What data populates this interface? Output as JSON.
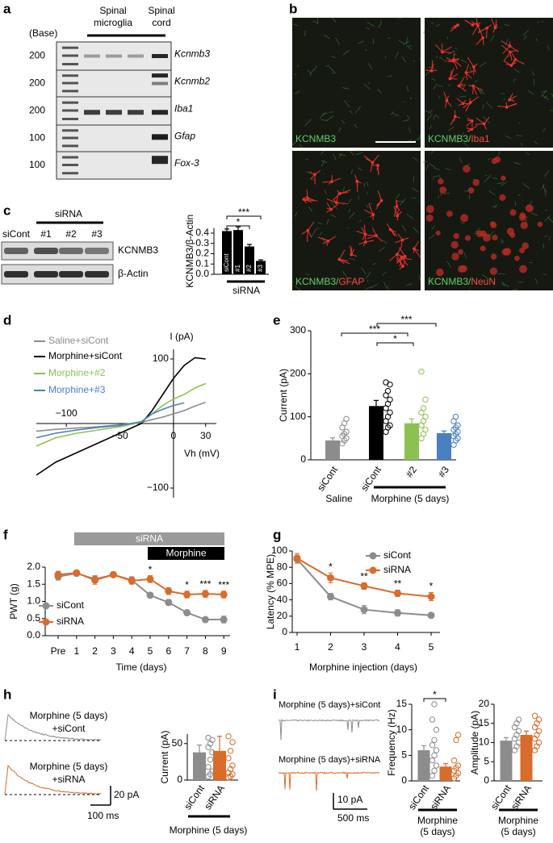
{
  "panel_labels": [
    "a",
    "b",
    "c",
    "d",
    "e",
    "f",
    "g",
    "h",
    "i"
  ],
  "gel": {
    "base_label": "(Base)",
    "lane_groups": [
      {
        "lines": [
          "Spinal",
          "microglia"
        ]
      },
      {
        "lines": [
          "Spinal",
          "cord"
        ]
      }
    ],
    "rows": [
      {
        "marker": 200,
        "gene": "Kcnmb3"
      },
      {
        "marker": 200,
        "gene": "Kcnmb2"
      },
      {
        "marker": 200,
        "gene": "Iba1"
      },
      {
        "marker": 100,
        "gene": "Gfap"
      },
      {
        "marker": 100,
        "gene": "Fox-3"
      }
    ]
  },
  "images": {
    "quadrants": [
      {
        "parts": [
          "KCNMB3"
        ]
      },
      {
        "parts": [
          "KCNMB3/",
          "Iba1"
        ]
      },
      {
        "parts": [
          "KCNMB3/",
          "GFAP"
        ]
      },
      {
        "parts": [
          "KCNMB3/",
          "NeuN"
        ]
      }
    ]
  },
  "blot": {
    "group": "siRNA",
    "lanes": [
      "siCont",
      "#1",
      "#2",
      "#3"
    ],
    "proteins": [
      "KCNMB3",
      "β-Actin"
    ]
  },
  "traces": {
    "h": {
      "labels": [
        [
          "Morphine (5 days)",
          "+siCont"
        ],
        [
          "Morphine (5 days)",
          "+siRNA"
        ]
      ],
      "scale": [
        "20 pA",
        "100 ms"
      ]
    },
    "i": {
      "labels": [
        "Morphine (5 days)+siCont",
        "Morphine (5 days)+siRNA"
      ],
      "scale": [
        "10 pA",
        "500 ms"
      ]
    }
  },
  "chart_data": [
    {
      "type": "bar",
      "ylabel": "KCNMB3/β-Actin",
      "categories": [
        "siCont",
        "#1",
        "#2",
        "#3"
      ],
      "values": [
        0.42,
        0.43,
        0.27,
        0.13
      ],
      "errors": [
        0.02,
        0.03,
        0.02,
        0.01
      ],
      "color": "#000000",
      "ylim": [
        0,
        0.45
      ],
      "yticks": [
        {
          "value": 0,
          "label": "0.0"
        },
        0.1,
        0.2,
        0.3,
        0.4
      ],
      "group_labels": [
        [
          "siRNA"
        ]
      ],
      "significance": [
        "***",
        "*"
      ]
    },
    {
      "type": "line",
      "ylabel": "I (pA)",
      "xlabel": "Vh (mV)",
      "x": [
        -128,
        -110,
        -90,
        -70,
        -50,
        -30,
        -20,
        -10,
        0,
        10,
        20,
        30
      ],
      "series": [
        {
          "name": "Saline+siCont",
          "color": "#8c8c8c",
          "values": [
            -12,
            -9,
            -7,
            -5,
            -2,
            2,
            6,
            10,
            15,
            20,
            27,
            33
          ]
        },
        {
          "name": "Morphine+siCont",
          "color": "#000000",
          "values": [
            -80,
            -60,
            -45,
            -30,
            -15,
            0,
            20,
            45,
            70,
            90,
            102,
            100
          ]
        },
        {
          "name": "Morphine+#2",
          "color": "#8cc152",
          "values": [
            -35,
            -22,
            -15,
            -10,
            -5,
            2,
            15,
            28,
            38,
            45,
            55,
            62
          ]
        },
        {
          "name": "Morphine+#3",
          "color": "#4a7fc1",
          "values": [
            -22,
            -15,
            -10,
            -6,
            -3,
            3,
            15,
            22,
            28,
            32,
            null,
            null
          ]
        }
      ],
      "xlim": [
        -128,
        40
      ],
      "ylim": [
        -115,
        115
      ],
      "xticks": [
        {
          "value": -100,
          "label": "−100"
        },
        {
          "value": -50,
          "label": "−50"
        },
        0,
        30
      ],
      "yticks": [
        {
          "value": -100,
          "label": "−100"
        },
        100
      ]
    },
    {
      "type": "bar",
      "ylabel": "Current (pA)",
      "categories": [
        "siCont",
        "siCont",
        "#2",
        "#3"
      ],
      "values": [
        45,
        125,
        85,
        62
      ],
      "errors": [
        6,
        13,
        10,
        5
      ],
      "colors": [
        "#8c8c8c",
        "#000000",
        "#8cc152",
        "#4a7fc1"
      ],
      "points": [
        [
          38,
          45,
          50,
          55,
          60,
          65,
          75,
          85,
          95
        ],
        [
          65,
          75,
          80,
          90,
          100,
          110,
          120,
          130,
          140,
          150,
          160,
          175,
          180
        ],
        [
          50,
          60,
          70,
          80,
          90,
          100,
          110,
          120,
          140,
          205
        ],
        [
          35,
          45,
          50,
          55,
          60,
          65,
          70,
          75,
          80,
          90,
          100
        ]
      ],
      "ylim": [
        0,
        300
      ],
      "yticks": [
        0,
        100,
        200,
        300
      ],
      "group_labels": [
        [
          "Saline"
        ],
        [
          "Morphine (5 days)"
        ]
      ],
      "significance": [
        "***",
        "*",
        "***"
      ]
    },
    {
      "type": "line",
      "ylabel": "PWT (g)",
      "xlabel": "Time (days)",
      "categories": [
        "Pre",
        "1",
        "2",
        "3",
        "4",
        "5",
        "6",
        "7",
        "8",
        "9"
      ],
      "series": [
        {
          "name": "siCont",
          "color": "#8c8c8c",
          "values": [
            1.72,
            1.82,
            1.65,
            1.78,
            1.62,
            1.18,
            0.97,
            0.67,
            0.47,
            0.47
          ],
          "errors": [
            0.1,
            0.08,
            0.1,
            0.06,
            0.1,
            0.06,
            0.08,
            0.06,
            0.06,
            0.1
          ]
        },
        {
          "name": "siRNA",
          "color": "#d96b2b",
          "values": [
            1.78,
            1.83,
            1.62,
            1.78,
            1.6,
            1.65,
            1.3,
            1.2,
            1.22,
            1.2
          ],
          "errors": [
            0.1,
            0.08,
            0.12,
            0.06,
            0.1,
            0.1,
            0.1,
            0.1,
            0.1,
            0.1
          ]
        }
      ],
      "ylim": [
        0,
        2.0
      ],
      "yticks": [
        {
          "value": 0,
          "label": "0.0"
        },
        0.5,
        {
          "value": 1,
          "label": "1.0"
        },
        1.5,
        {
          "value": 2,
          "label": "2.0"
        }
      ],
      "treatment_bars": [
        {
          "label": "siRNA",
          "color": "#9a9a9a"
        },
        {
          "label": "Morphine",
          "color": "#000000"
        }
      ],
      "significance": [
        null,
        null,
        null,
        null,
        null,
        "*",
        null,
        "*",
        "***",
        "***"
      ],
      "legend": "lower-left"
    },
    {
      "type": "line",
      "ylabel": "Latency (% MPE)",
      "xlabel": "Morphine injection (days)",
      "categories": [
        "1",
        "2",
        "3",
        "4",
        "5"
      ],
      "series": [
        {
          "name": "siCont",
          "color": "#8c8c8c",
          "values": [
            90,
            44,
            28,
            24,
            21
          ],
          "errors": [
            5,
            4,
            5,
            4,
            2
          ]
        },
        {
          "name": "siRNA",
          "color": "#d96b2b",
          "values": [
            91,
            67,
            57,
            48,
            44
          ],
          "errors": [
            6,
            6,
            4,
            4,
            5
          ]
        }
      ],
      "ylim": [
        0,
        100
      ],
      "yticks": [
        0,
        20,
        40,
        60,
        80,
        100
      ],
      "significance": [
        null,
        "*",
        "**",
        "**",
        "*"
      ],
      "legend": "upper-right"
    },
    {
      "type": "bar",
      "ylabel": "Current (pA)",
      "categories": [
        "siCont",
        "siRNA"
      ],
      "values": [
        38,
        40
      ],
      "errors": [
        10,
        20
      ],
      "colors": [
        "#8c8c8c",
        "#d96b2b"
      ],
      "points": [
        [
          5,
          8,
          12,
          18,
          28,
          38,
          45,
          50,
          55,
          58
        ],
        [
          3,
          5,
          8,
          10,
          15,
          20,
          30,
          40,
          52,
          60
        ]
      ],
      "ylim": [
        0,
        63
      ],
      "yticks": [
        0,
        50
      ],
      "group_labels": [
        [
          "Morphine (5 days)"
        ]
      ]
    },
    {
      "type": "bar",
      "ylabel": "Frequency (Hz)",
      "categories": [
        "siCont",
        "siRNA"
      ],
      "values": [
        6,
        2.8
      ],
      "errors": [
        0.9,
        0.6
      ],
      "colors": [
        "#8c8c8c",
        "#d96b2b"
      ],
      "points": [
        [
          1,
          2,
          3,
          4,
          5,
          6,
          7,
          8,
          10,
          12,
          15
        ],
        [
          0.5,
          1,
          1.5,
          2,
          2.5,
          3,
          4,
          8,
          9
        ]
      ],
      "ylim": [
        0,
        15
      ],
      "yticks": [
        0,
        5,
        10,
        15
      ],
      "group_labels": [
        [
          "Morphine",
          "(5 days)"
        ]
      ],
      "significance": [
        "*"
      ]
    },
    {
      "type": "bar",
      "ylabel": "Amplitude (pA)",
      "categories": [
        "siCont",
        "siRNA"
      ],
      "values": [
        10.5,
        12
      ],
      "errors": [
        0.8,
        1
      ],
      "colors": [
        "#8c8c8c",
        "#d96b2b"
      ],
      "points": [
        [
          8,
          9,
          10,
          11,
          12,
          13,
          14,
          15,
          16
        ],
        [
          8,
          9,
          10,
          11,
          12,
          13,
          14,
          15,
          16,
          17
        ]
      ],
      "ylim": [
        0,
        20
      ],
      "yticks": [
        0,
        5,
        10,
        15,
        20
      ],
      "group_labels": [
        [
          "Morphine",
          "(5 days)"
        ]
      ]
    }
  ]
}
